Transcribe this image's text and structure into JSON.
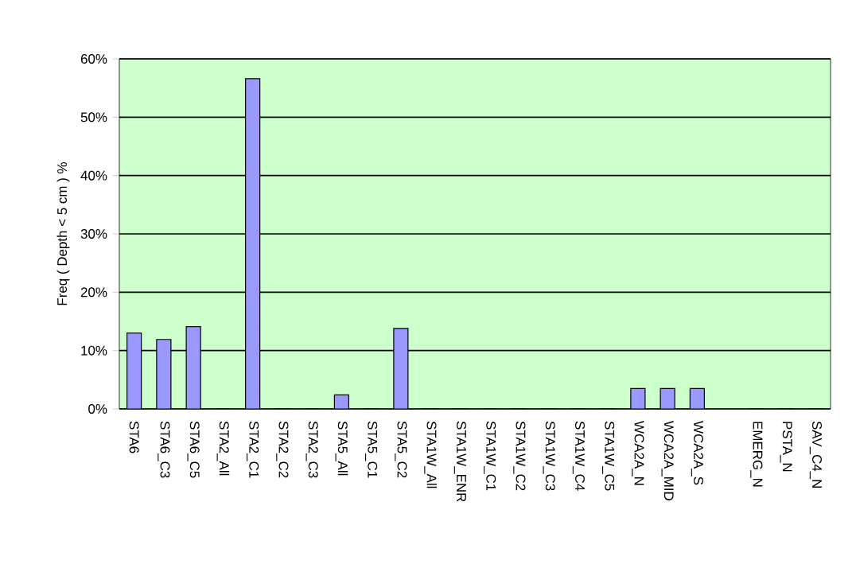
{
  "chart_data": {
    "type": "bar",
    "ylabel": "Freq ( Depth < 5 cm ) %",
    "categories": [
      "STA6",
      "STA6_C3",
      "STA6_C5",
      "STA2_All",
      "STA2_C1",
      "STA2_C2",
      "STA2_C3",
      "STA5_All",
      "STA5_C1",
      "STA5_C2",
      "STA1W_All",
      "STA1W_ENR",
      "STA1W_C1",
      "STA1W_C2",
      "STA1W_C3",
      "STA1W_C4",
      "STA1W_C5",
      "WCA2A_N",
      "WCA2A_MID",
      "WCA2A_S",
      null,
      "EMERG_N",
      "PSTA_N",
      "SAV_C4_N"
    ],
    "values": [
      13.0,
      11.9,
      14.1,
      0,
      56.6,
      0,
      0,
      2.4,
      0,
      13.8,
      0,
      0,
      0,
      0,
      0,
      0,
      0,
      3.5,
      3.5,
      3.5,
      null,
      0,
      0,
      0
    ],
    "color": "#9999ff",
    "ylim": [
      0,
      60
    ],
    "yticks": [
      {
        "value": 0,
        "label": "0%"
      },
      {
        "value": 10,
        "label": "10%"
      },
      {
        "value": 20,
        "label": "20%"
      },
      {
        "value": 30,
        "label": "30%"
      },
      {
        "value": 40,
        "label": "40%"
      },
      {
        "value": 50,
        "label": "50%"
      },
      {
        "value": 60,
        "label": "60%"
      }
    ],
    "grid": "y"
  }
}
